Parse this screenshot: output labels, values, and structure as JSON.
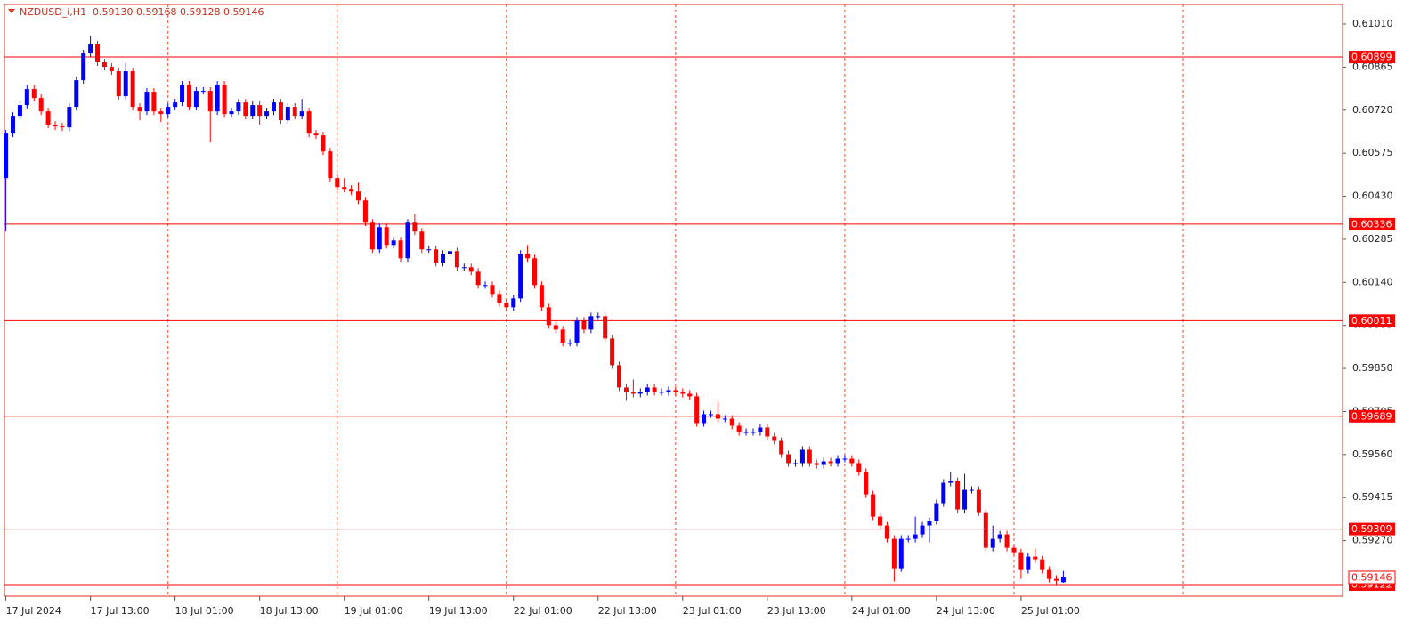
{
  "chart_data": {
    "type": "candlestick",
    "title": "NZDUSD_i,H1  0.59130 0.59168 0.59128 0.59146",
    "up_color": "#0000ff",
    "down_color": "#ff0000",
    "level_color": "#ff0000",
    "ylim": [
      0.59083,
      0.61076
    ],
    "xlim": [
      -0.2,
      189.6
    ],
    "yticks": [
      {
        "value": 0.6101,
        "label": "0.61010"
      },
      0.60865,
      {
        "value": 0.6072,
        "label": "0.60720"
      },
      0.60575,
      {
        "value": 0.6043,
        "label": "0.60430"
      },
      0.60285,
      {
        "value": 0.6014,
        "label": "0.60140"
      },
      0.59995,
      {
        "value": 0.5985,
        "label": "0.59850"
      },
      0.59705,
      {
        "value": 0.5956,
        "label": "0.59560"
      },
      0.59415,
      {
        "value": 0.5927,
        "label": "0.59270"
      }
    ],
    "xticks": [
      {
        "value": 0,
        "label": "17 Jul 2024"
      },
      {
        "value": 12,
        "label": "17 Jul 13:00"
      },
      {
        "value": 24,
        "label": "18 Jul 01:00"
      },
      {
        "value": 36,
        "label": "18 Jul 13:00"
      },
      {
        "value": 48,
        "label": "19 Jul 01:00"
      },
      {
        "value": 60,
        "label": "19 Jul 13:00"
      },
      {
        "value": 72,
        "label": "22 Jul 01:00"
      },
      {
        "value": 84,
        "label": "22 Jul 13:00"
      },
      {
        "value": 96,
        "label": "23 Jul 01:00"
      },
      {
        "value": 108,
        "label": "23 Jul 13:00"
      },
      {
        "value": 120,
        "label": "24 Jul 01:00"
      },
      {
        "value": 132,
        "label": "24 Jul 13:00"
      },
      {
        "value": 144,
        "label": "25 Jul 01:00"
      }
    ],
    "xgrid": [
      23,
      47,
      71,
      95,
      119,
      143,
      167
    ],
    "levels": [
      0.60899,
      0.60336,
      0.60011,
      0.59689,
      0.59309,
      0.59122
    ],
    "bid": 0.59146,
    "candles": [
      [
        0.60491,
        0.60653,
        0.60311,
        0.60641
      ],
      [
        0.60641,
        0.60713,
        0.60629,
        0.60701
      ],
      [
        0.60701,
        0.60749,
        0.60689,
        0.60737
      ],
      [
        0.60737,
        0.60803,
        0.60725,
        0.60791
      ],
      [
        0.60791,
        0.60803,
        0.60749,
        0.60761
      ],
      [
        0.60761,
        0.60773,
        0.60704,
        0.60716
      ],
      [
        0.60716,
        0.60728,
        0.60659,
        0.60671
      ],
      [
        0.60671,
        0.60683,
        0.60653,
        0.60665
      ],
      [
        0.60665,
        0.60677,
        0.6065,
        0.60662
      ],
      [
        0.60662,
        0.60743,
        0.6065,
        0.60731
      ],
      [
        0.60731,
        0.60833,
        0.60719,
        0.60821
      ],
      [
        0.60821,
        0.60923,
        0.60809,
        0.60911
      ],
      [
        0.60911,
        0.60971,
        0.60899,
        0.60941
      ],
      [
        0.60941,
        0.60953,
        0.60869,
        0.60881
      ],
      [
        0.60881,
        0.60893,
        0.60854,
        0.60866
      ],
      [
        0.60866,
        0.60878,
        0.60839,
        0.60851
      ],
      [
        0.60851,
        0.60863,
        0.60755,
        0.60767
      ],
      [
        0.60767,
        0.6088,
        0.60755,
        0.60851
      ],
      [
        0.60851,
        0.60863,
        0.60719,
        0.60731
      ],
      [
        0.60731,
        0.60743,
        0.60686,
        0.60716
      ],
      [
        0.60716,
        0.60794,
        0.60704,
        0.60782
      ],
      [
        0.60782,
        0.60794,
        0.60704,
        0.60716
      ],
      [
        0.60716,
        0.60728,
        0.6068,
        0.60707
      ],
      [
        0.60707,
        0.60743,
        0.60695,
        0.60731
      ],
      [
        0.60731,
        0.60758,
        0.60719,
        0.60746
      ],
      [
        0.60746,
        0.60818,
        0.60734,
        0.60806
      ],
      [
        0.60806,
        0.60818,
        0.60719,
        0.60731
      ],
      [
        0.60731,
        0.60797,
        0.60719,
        0.60785
      ],
      [
        0.60785,
        0.60797,
        0.60773,
        0.60785
      ],
      [
        0.60785,
        0.60797,
        0.60611,
        0.60716
      ],
      [
        0.60716,
        0.60818,
        0.60704,
        0.60806
      ],
      [
        0.60806,
        0.60818,
        0.60695,
        0.60707
      ],
      [
        0.60707,
        0.60728,
        0.60695,
        0.60716
      ],
      [
        0.60716,
        0.60758,
        0.60704,
        0.60746
      ],
      [
        0.60746,
        0.60758,
        0.60689,
        0.60701
      ],
      [
        0.60701,
        0.60749,
        0.60689,
        0.60737
      ],
      [
        0.60737,
        0.60749,
        0.60671,
        0.60701
      ],
      [
        0.60701,
        0.60728,
        0.60689,
        0.60716
      ],
      [
        0.60716,
        0.60758,
        0.60704,
        0.60746
      ],
      [
        0.60746,
        0.60758,
        0.60674,
        0.60686
      ],
      [
        0.60686,
        0.60743,
        0.60674,
        0.60731
      ],
      [
        0.60731,
        0.60743,
        0.60689,
        0.60701
      ],
      [
        0.60701,
        0.60758,
        0.60689,
        0.60716
      ],
      [
        0.60716,
        0.60728,
        0.60629,
        0.60641
      ],
      [
        0.60641,
        0.60653,
        0.60623,
        0.60635
      ],
      [
        0.60635,
        0.60647,
        0.60569,
        0.60581
      ],
      [
        0.60581,
        0.60593,
        0.60479,
        0.60491
      ],
      [
        0.60491,
        0.60503,
        0.60449,
        0.60461
      ],
      [
        0.60461,
        0.60491,
        0.60443,
        0.60455
      ],
      [
        0.60455,
        0.60467,
        0.60434,
        0.60446
      ],
      [
        0.60446,
        0.60476,
        0.60404,
        0.60416
      ],
      [
        0.60416,
        0.60428,
        0.60329,
        0.60341
      ],
      [
        0.60341,
        0.60353,
        0.60239,
        0.60251
      ],
      [
        0.60251,
        0.60338,
        0.60239,
        0.60326
      ],
      [
        0.60326,
        0.60338,
        0.60254,
        0.60266
      ],
      [
        0.60266,
        0.60293,
        0.60254,
        0.60281
      ],
      [
        0.60281,
        0.60293,
        0.60209,
        0.60221
      ],
      [
        0.60221,
        0.60353,
        0.60209,
        0.60341
      ],
      [
        0.60341,
        0.60371,
        0.60299,
        0.60311
      ],
      [
        0.60311,
        0.60323,
        0.60239,
        0.60251
      ],
      [
        0.60251,
        0.60263,
        0.60239,
        0.60251
      ],
      [
        0.60251,
        0.60263,
        0.60194,
        0.60206
      ],
      [
        0.60206,
        0.60248,
        0.60194,
        0.60236
      ],
      [
        0.60236,
        0.60257,
        0.60224,
        0.60245
      ],
      [
        0.60245,
        0.60257,
        0.60179,
        0.60191
      ],
      [
        0.60191,
        0.60203,
        0.60179,
        0.60191
      ],
      [
        0.60191,
        0.60203,
        0.60164,
        0.60176
      ],
      [
        0.60176,
        0.60188,
        0.60119,
        0.60131
      ],
      [
        0.60131,
        0.60143,
        0.60119,
        0.60131
      ],
      [
        0.60131,
        0.60143,
        0.60089,
        0.60101
      ],
      [
        0.60101,
        0.60113,
        0.60059,
        0.60071
      ],
      [
        0.60071,
        0.60083,
        0.60044,
        0.60056
      ],
      [
        0.60056,
        0.60098,
        0.60044,
        0.60086
      ],
      [
        0.60086,
        0.60248,
        0.60074,
        0.60236
      ],
      [
        0.60236,
        0.60266,
        0.60209,
        0.60221
      ],
      [
        0.60221,
        0.60233,
        0.60119,
        0.60131
      ],
      [
        0.60131,
        0.60143,
        0.60044,
        0.60056
      ],
      [
        0.60056,
        0.60068,
        0.59984,
        0.59996
      ],
      [
        0.59996,
        0.60008,
        0.59969,
        0.59981
      ],
      [
        0.59981,
        0.59993,
        0.59924,
        0.59936
      ],
      [
        0.59936,
        0.59948,
        0.59924,
        0.59936
      ],
      [
        0.59936,
        0.60023,
        0.59924,
        0.60011
      ],
      [
        0.60011,
        0.60023,
        0.59969,
        0.59981
      ],
      [
        0.59981,
        0.60038,
        0.59969,
        0.60026
      ],
      [
        0.60026,
        0.60038,
        0.60014,
        0.60026
      ],
      [
        0.60026,
        0.60038,
        0.59939,
        0.59951
      ],
      [
        0.59951,
        0.59963,
        0.59849,
        0.59861
      ],
      [
        0.59861,
        0.59873,
        0.59774,
        0.59786
      ],
      [
        0.59786,
        0.59798,
        0.59741,
        0.59771
      ],
      [
        0.59771,
        0.59813,
        0.59753,
        0.59765
      ],
      [
        0.59765,
        0.59783,
        0.59753,
        0.59771
      ],
      [
        0.59771,
        0.59798,
        0.59759,
        0.59786
      ],
      [
        0.59786,
        0.59798,
        0.59759,
        0.59771
      ],
      [
        0.59771,
        0.59783,
        0.59759,
        0.59771
      ],
      [
        0.59771,
        0.59789,
        0.59759,
        0.59777
      ],
      [
        0.59777,
        0.59789,
        0.59759,
        0.59771
      ],
      [
        0.59771,
        0.59783,
        0.59753,
        0.59765
      ],
      [
        0.59765,
        0.59777,
        0.59744,
        0.59756
      ],
      [
        0.59756,
        0.59768,
        0.59654,
        0.59666
      ],
      [
        0.59666,
        0.59708,
        0.59654,
        0.59696
      ],
      [
        0.59696,
        0.59708,
        0.59684,
        0.59696
      ],
      [
        0.59696,
        0.59738,
        0.59669,
        0.59681
      ],
      [
        0.59681,
        0.59693,
        0.59669,
        0.59681
      ],
      [
        0.59681,
        0.59693,
        0.59645,
        0.59657
      ],
      [
        0.59657,
        0.59669,
        0.59624,
        0.59636
      ],
      [
        0.59636,
        0.59648,
        0.59624,
        0.59636
      ],
      [
        0.59636,
        0.59648,
        0.59624,
        0.59636
      ],
      [
        0.59636,
        0.59663,
        0.59624,
        0.59651
      ],
      [
        0.59651,
        0.59663,
        0.59609,
        0.59621
      ],
      [
        0.59621,
        0.59633,
        0.59594,
        0.59606
      ],
      [
        0.59606,
        0.59618,
        0.59549,
        0.59561
      ],
      [
        0.59561,
        0.59573,
        0.59519,
        0.59531
      ],
      [
        0.59531,
        0.59543,
        0.59519,
        0.59531
      ],
      [
        0.59531,
        0.59588,
        0.59519,
        0.59576
      ],
      [
        0.59576,
        0.59588,
        0.59519,
        0.59531
      ],
      [
        0.59531,
        0.59543,
        0.59513,
        0.59525
      ],
      [
        0.59525,
        0.59549,
        0.59513,
        0.59537
      ],
      [
        0.59537,
        0.59549,
        0.59519,
        0.59531
      ],
      [
        0.59531,
        0.59558,
        0.59519,
        0.59546
      ],
      [
        0.59546,
        0.59558,
        0.59534,
        0.59546
      ],
      [
        0.59546,
        0.59558,
        0.59519,
        0.59531
      ],
      [
        0.59531,
        0.59543,
        0.59489,
        0.59501
      ],
      [
        0.59501,
        0.59513,
        0.59414,
        0.59426
      ],
      [
        0.59426,
        0.59438,
        0.59339,
        0.59351
      ],
      [
        0.59351,
        0.59363,
        0.59309,
        0.59321
      ],
      [
        0.59321,
        0.59333,
        0.59264,
        0.59276
      ],
      [
        0.59276,
        0.59288,
        0.59132,
        0.59177
      ],
      [
        0.59177,
        0.59288,
        0.59165,
        0.59276
      ],
      [
        0.59276,
        0.59288,
        0.59264,
        0.59276
      ],
      [
        0.59276,
        0.59351,
        0.59264,
        0.59291
      ],
      [
        0.59291,
        0.59333,
        0.59279,
        0.59321
      ],
      [
        0.59321,
        0.59348,
        0.59264,
        0.59336
      ],
      [
        0.59336,
        0.59408,
        0.59324,
        0.59396
      ],
      [
        0.59396,
        0.59477,
        0.59384,
        0.59465
      ],
      [
        0.59465,
        0.59501,
        0.59453,
        0.59471
      ],
      [
        0.59471,
        0.59483,
        0.59363,
        0.59375
      ],
      [
        0.59375,
        0.59495,
        0.59363,
        0.59441
      ],
      [
        0.59441,
        0.59453,
        0.59429,
        0.59441
      ],
      [
        0.59441,
        0.59453,
        0.59354,
        0.59366
      ],
      [
        0.59366,
        0.59378,
        0.59234,
        0.59246
      ],
      [
        0.59246,
        0.59321,
        0.59234,
        0.59276
      ],
      [
        0.59276,
        0.59303,
        0.59264,
        0.59291
      ],
      [
        0.59291,
        0.59303,
        0.59234,
        0.59246
      ],
      [
        0.59246,
        0.59258,
        0.59219,
        0.59231
      ],
      [
        0.59231,
        0.59243,
        0.59141,
        0.59171
      ],
      [
        0.59171,
        0.59228,
        0.59159,
        0.59216
      ],
      [
        0.59216,
        0.59243,
        0.59195,
        0.59207
      ],
      [
        0.59207,
        0.59219,
        0.59159,
        0.59171
      ],
      [
        0.59171,
        0.59183,
        0.59129,
        0.59141
      ],
      [
        0.59141,
        0.59153,
        0.59123,
        0.59135
      ],
      [
        0.5913,
        0.59168,
        0.59128,
        0.59146
      ]
    ]
  }
}
